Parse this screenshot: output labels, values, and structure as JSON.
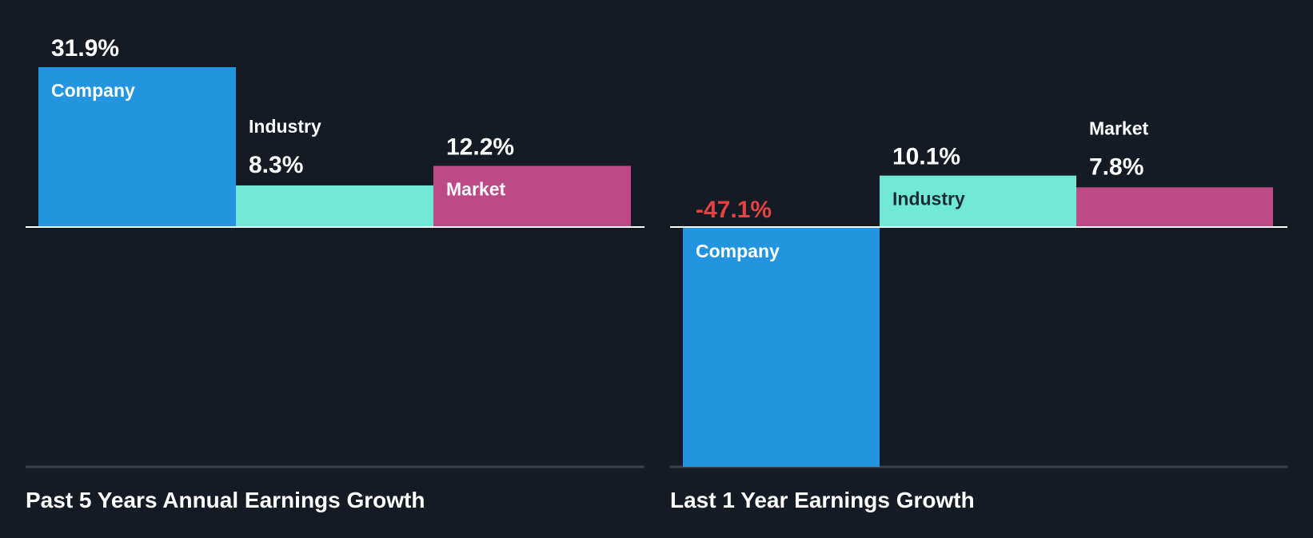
{
  "colors": {
    "background": "#151b24",
    "company": "#2394df",
    "industry": "#70e8d6",
    "market": "#bb4a87",
    "negative": "#e64141",
    "text": "#ffffff",
    "dark_text": "#1e2a36",
    "axis": "#ffffff",
    "baseline": "#3a404a"
  },
  "chart_data": [
    {
      "type": "bar",
      "title": "Past 5 Years Annual Earnings Growth",
      "categories": [
        "Company",
        "Industry",
        "Market"
      ],
      "values": [
        31.9,
        8.3,
        12.2
      ],
      "value_labels": [
        "31.9%",
        "8.3%",
        "12.2%"
      ],
      "unit": "%",
      "ylim": [
        0,
        45.5
      ],
      "grid": false
    },
    {
      "type": "bar",
      "title": "Last 1 Year Earnings Growth",
      "categories": [
        "Company",
        "Industry",
        "Market"
      ],
      "values": [
        -47.1,
        10.1,
        7.8
      ],
      "value_labels": [
        "-47.1%",
        "10.1%",
        "7.8%"
      ],
      "unit": "%",
      "ylim": [
        -47.1,
        31.5
      ],
      "grid": false
    }
  ]
}
